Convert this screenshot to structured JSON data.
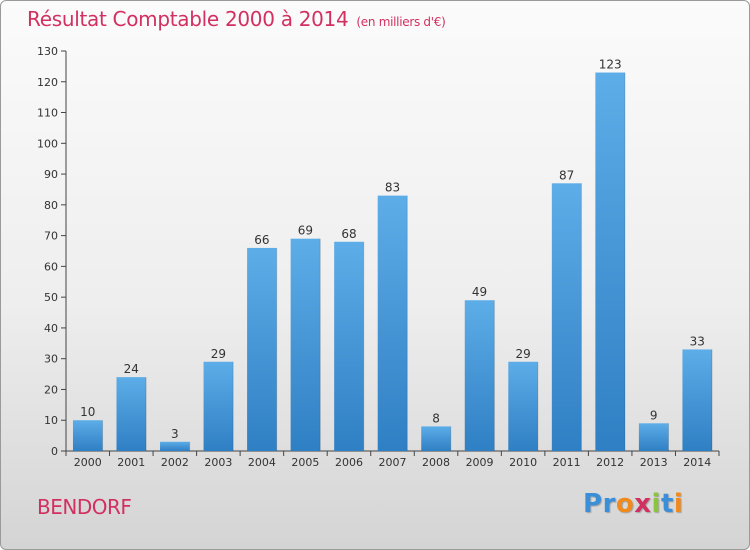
{
  "title": "Résultat Comptable 2000 à 2014",
  "unit": "(en milliers d'€)",
  "place": "BENDORF",
  "logo_text": "Proxiti",
  "colors": {
    "accent": "#d23060",
    "bar_light": "#5dade8",
    "bar_dark": "#2f7fc4",
    "logo": [
      "#3b8ed8",
      "#3b8ed8",
      "#f08a1c",
      "#d23060",
      "#8bc43f",
      "#3b8ed8",
      "#f08a1c"
    ]
  },
  "chart_data": {
    "type": "bar",
    "categories": [
      "2000",
      "2001",
      "2002",
      "2003",
      "2004",
      "2005",
      "2006",
      "2007",
      "2008",
      "2009",
      "2010",
      "2011",
      "2012",
      "2013",
      "2014"
    ],
    "values": [
      10,
      24,
      3,
      29,
      66,
      69,
      68,
      83,
      8,
      49,
      29,
      87,
      123,
      9,
      33
    ],
    "title": "Résultat Comptable 2000 à 2014",
    "ylim": [
      0,
      130
    ],
    "yticks": [
      0,
      10,
      20,
      30,
      40,
      50,
      60,
      70,
      80,
      90,
      100,
      110,
      120,
      130
    ],
    "grid": false,
    "legend": "none"
  }
}
